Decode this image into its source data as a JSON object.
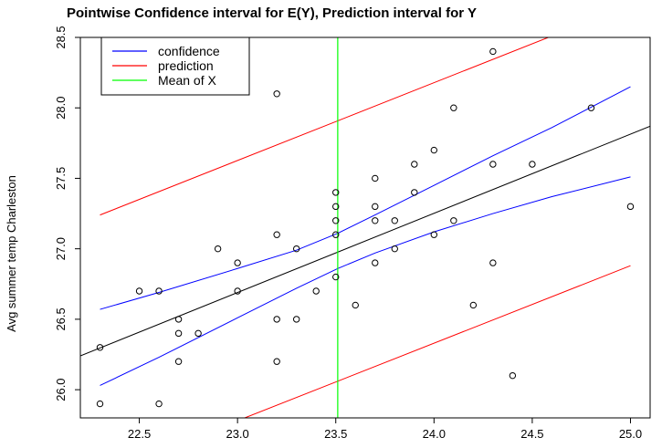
{
  "chart_data": {
    "type": "scatter",
    "title": "Pointwise Confidence interval for E(Y), Prediction interval for Y",
    "xlabel": "",
    "ylabel": "Avg summer temp Charleston",
    "xlim": [
      22.2,
      25.1
    ],
    "ylim": [
      25.8,
      28.5
    ],
    "x_ticks": [
      "22.5",
      "23.0",
      "23.5",
      "24.0",
      "24.5",
      "25.0"
    ],
    "y_ticks": [
      "26.0",
      "26.5",
      "27.0",
      "27.5",
      "28.0",
      "28.5"
    ],
    "legend": {
      "position": "top-left",
      "entries": [
        {
          "label": "confidence",
          "color": "#0000ff"
        },
        {
          "label": "prediction",
          "color": "#ff0000"
        },
        {
          "label": "Mean of X",
          "color": "#00ff00"
        }
      ]
    },
    "points": [
      {
        "x": 22.3,
        "y": 26.3
      },
      {
        "x": 22.3,
        "y": 25.9
      },
      {
        "x": 22.5,
        "y": 26.7
      },
      {
        "x": 22.6,
        "y": 26.7
      },
      {
        "x": 22.6,
        "y": 25.9
      },
      {
        "x": 22.7,
        "y": 26.5
      },
      {
        "x": 22.7,
        "y": 26.4
      },
      {
        "x": 22.7,
        "y": 26.2
      },
      {
        "x": 22.8,
        "y": 26.4
      },
      {
        "x": 22.9,
        "y": 27.0
      },
      {
        "x": 23.0,
        "y": 26.9
      },
      {
        "x": 23.0,
        "y": 26.7
      },
      {
        "x": 23.2,
        "y": 28.1
      },
      {
        "x": 23.2,
        "y": 27.1
      },
      {
        "x": 23.2,
        "y": 26.5
      },
      {
        "x": 23.2,
        "y": 26.2
      },
      {
        "x": 23.3,
        "y": 27.0
      },
      {
        "x": 23.3,
        "y": 26.5
      },
      {
        "x": 23.4,
        "y": 26.7
      },
      {
        "x": 23.5,
        "y": 27.4
      },
      {
        "x": 23.5,
        "y": 27.3
      },
      {
        "x": 23.5,
        "y": 27.2
      },
      {
        "x": 23.5,
        "y": 27.1
      },
      {
        "x": 23.5,
        "y": 26.8
      },
      {
        "x": 23.6,
        "y": 26.6
      },
      {
        "x": 23.7,
        "y": 27.5
      },
      {
        "x": 23.7,
        "y": 27.3
      },
      {
        "x": 23.7,
        "y": 27.2
      },
      {
        "x": 23.7,
        "y": 26.9
      },
      {
        "x": 23.8,
        "y": 27.2
      },
      {
        "x": 23.8,
        "y": 27.0
      },
      {
        "x": 23.9,
        "y": 27.6
      },
      {
        "x": 23.9,
        "y": 27.4
      },
      {
        "x": 24.0,
        "y": 27.7
      },
      {
        "x": 24.0,
        "y": 27.1
      },
      {
        "x": 24.1,
        "y": 28.0
      },
      {
        "x": 24.1,
        "y": 27.2
      },
      {
        "x": 24.2,
        "y": 26.6
      },
      {
        "x": 24.3,
        "y": 28.4
      },
      {
        "x": 24.3,
        "y": 27.6
      },
      {
        "x": 24.3,
        "y": 26.9
      },
      {
        "x": 24.4,
        "y": 26.1
      },
      {
        "x": 24.5,
        "y": 27.6
      },
      {
        "x": 24.8,
        "y": 28.0
      },
      {
        "x": 25.0,
        "y": 27.3
      }
    ],
    "series": [
      {
        "name": "fit",
        "color": "#000000",
        "x": [
          22.2,
          25.1
        ],
        "y": [
          26.24,
          27.87
        ]
      },
      {
        "name": "confidence",
        "color": "#0000ff",
        "x": [
          22.3,
          22.6,
          23.0,
          23.3,
          23.51,
          23.7,
          24.0,
          24.3,
          24.6,
          25.0
        ],
        "y": [
          26.57,
          26.69,
          26.86,
          26.99,
          27.11,
          27.24,
          27.45,
          27.66,
          27.86,
          28.15
        ]
      },
      {
        "name": "confidence",
        "color": "#0000ff",
        "x": [
          22.3,
          22.6,
          23.0,
          23.3,
          23.51,
          23.7,
          24.0,
          24.3,
          24.6,
          25.0
        ],
        "y": [
          26.03,
          26.23,
          26.51,
          26.72,
          26.86,
          26.97,
          27.12,
          27.25,
          27.37,
          27.51
        ]
      },
      {
        "name": "prediction",
        "color": "#ff0000",
        "x": [
          22.3,
          24.6
        ],
        "y": [
          27.24,
          28.51
        ]
      },
      {
        "name": "prediction",
        "color": "#ff0000",
        "x": [
          23.0,
          25.0
        ],
        "y": [
          25.78,
          26.88
        ]
      }
    ],
    "vline": {
      "name": "Mean of X",
      "x": 23.51,
      "color": "#00ff00"
    }
  }
}
